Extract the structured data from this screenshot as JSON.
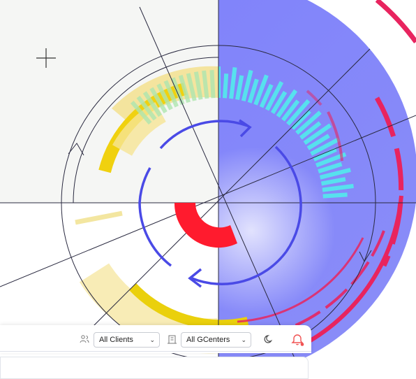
{
  "colors": {
    "accent_purple": "#7b7ff8",
    "accent_blue": "#4a4ae0",
    "yellow": "#f2d21b",
    "pink": "#e8245f",
    "cyan": "#4fe3ec",
    "red": "#ff1b2e",
    "notification_red": "#f05252"
  },
  "toolbar": {
    "clients_icon": "users-icon",
    "clients_select": "All Clients",
    "gcenters_icon": "building-icon",
    "gcenters_select": "All GCenters",
    "theme_icon": "moon-icon",
    "notifications_icon": "bell-icon"
  }
}
